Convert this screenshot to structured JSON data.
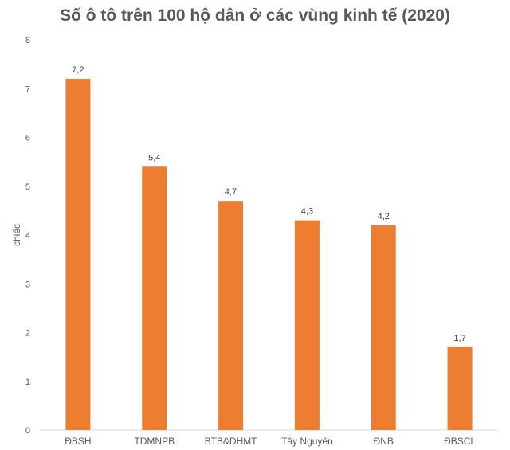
{
  "chart_data": {
    "type": "bar",
    "title": "Số ô tô trên 100 hộ dân ở các vùng kinh tế (2020)",
    "xlabel": "",
    "ylabel": "chiếc",
    "categories": [
      "ĐBSH",
      "TDMNPB",
      "BTB&DHMT",
      "Tây Nguyên",
      "ĐNB",
      "ĐBSCL"
    ],
    "values": [
      7.2,
      5.4,
      4.7,
      4.3,
      4.2,
      1.7
    ],
    "data_labels": [
      "7,2",
      "5,4",
      "4,7",
      "4,3",
      "4,2",
      "1,7"
    ],
    "yticks": [
      "0",
      "1",
      "2",
      "3",
      "4",
      "5",
      "6",
      "7",
      "8"
    ],
    "ylim": [
      0,
      8
    ],
    "grid": false,
    "legend": "none",
    "bar_color": "#ED7D31"
  }
}
